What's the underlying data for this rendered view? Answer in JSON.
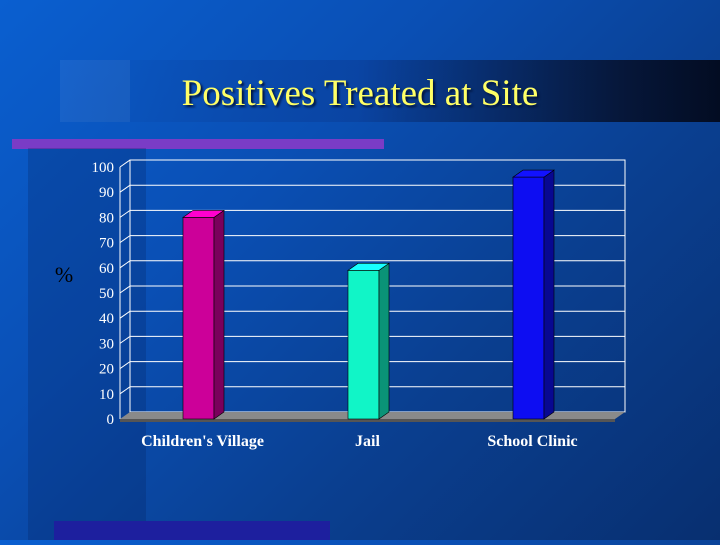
{
  "slide": {
    "title": "Positives Treated at Site",
    "accent_color": "#7a3cc6",
    "title_color": "#ffff66"
  },
  "chart_data": {
    "type": "bar",
    "categories": [
      "Children's Village",
      "Jail",
      "School Clinic"
    ],
    "values": [
      80,
      59,
      96
    ],
    "colors": [
      "#cc0099",
      "#11f5c7",
      "#0d0df2"
    ],
    "ylabel": "%",
    "xlabel": "",
    "ylim": [
      0,
      100
    ],
    "yticks": [
      0,
      10,
      20,
      30,
      40,
      50,
      60,
      70,
      80,
      90,
      100
    ],
    "grid": true,
    "style": "3d"
  }
}
